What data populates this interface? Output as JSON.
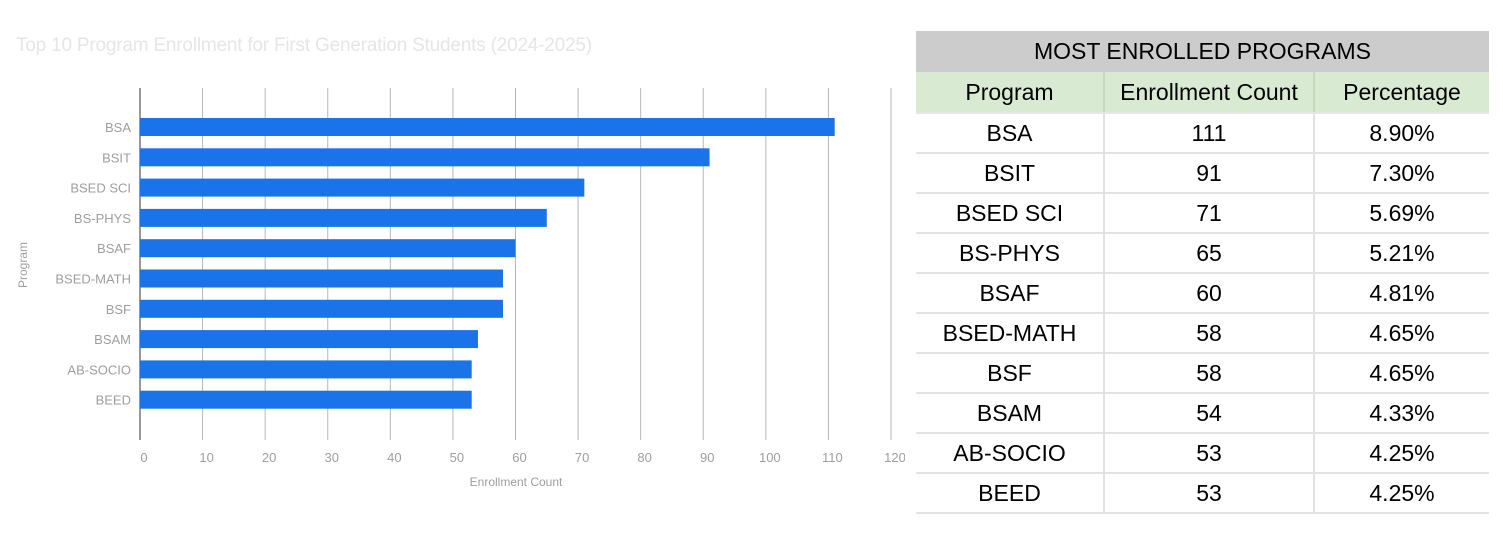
{
  "chart_data": {
    "type": "bar",
    "orientation": "horizontal",
    "title": "Top 10 Program Enrollment for First Generation Students (2024-2025)",
    "xlabel": "Enrollment Count",
    "ylabel": "Program",
    "xlim": [
      0,
      120
    ],
    "xticks": [
      0,
      10,
      20,
      30,
      40,
      50,
      60,
      70,
      80,
      90,
      100,
      110,
      120
    ],
    "grid": true,
    "legend": "none",
    "categories": [
      "BSA",
      "BSIT",
      "BSED SCI",
      "BS-PHYS",
      "BSAF",
      "BSED-MATH",
      "BSF",
      "BSAM",
      "AB-SOCIO",
      "BEED"
    ],
    "values": [
      111,
      91,
      71,
      65,
      60,
      58,
      58,
      54,
      53,
      53
    ],
    "bar_color": "#1a73e8"
  },
  "table": {
    "title": "MOST ENROLLED PROGRAMS",
    "columns": [
      "Program",
      "Enrollment Count",
      "Percentage"
    ],
    "rows": [
      [
        "BSA",
        "111",
        "8.90%"
      ],
      [
        "BSIT",
        "91",
        "7.30%"
      ],
      [
        "BSED SCI",
        "71",
        "5.69%"
      ],
      [
        "BS-PHYS",
        "65",
        "5.21%"
      ],
      [
        "BSAF",
        "60",
        "4.81%"
      ],
      [
        "BSED-MATH",
        "58",
        "4.65%"
      ],
      [
        "BSF",
        "58",
        "4.65%"
      ],
      [
        "BSAM",
        "54",
        "4.33%"
      ],
      [
        "AB-SOCIO",
        "53",
        "4.25%"
      ],
      [
        "BEED",
        "53",
        "4.25%"
      ]
    ]
  }
}
